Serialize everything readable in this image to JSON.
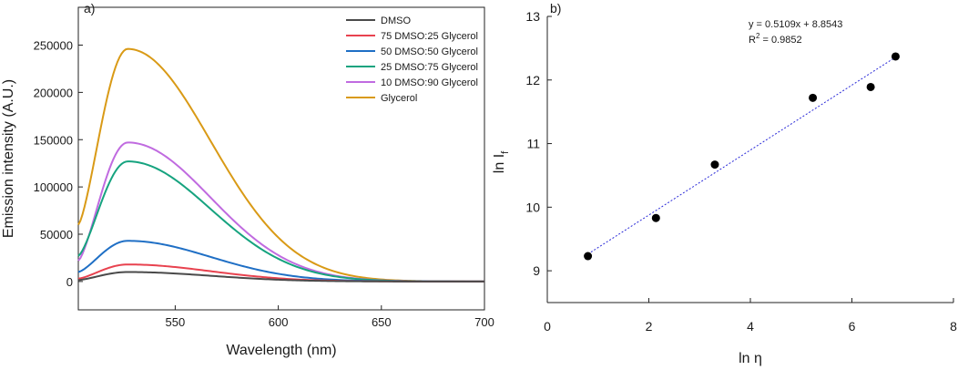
{
  "chart_data": [
    {
      "panel_label": "a)",
      "type": "line",
      "xlabel": "Wavelength (nm)",
      "ylabel": "Emission intensity (A.U.)",
      "xlim": [
        503,
        700
      ],
      "ylim": [
        -30000,
        290000
      ],
      "xticks": [
        550,
        600,
        650,
        700
      ],
      "yticks": [
        0,
        50000,
        100000,
        150000,
        200000,
        250000
      ],
      "legend_position": "top-right",
      "peak_wavelength": 527,
      "series": [
        {
          "name": "DMSO",
          "color": "#4a4a4a",
          "peak": 10000,
          "start": 1500
        },
        {
          "name": "75 DMSO:25 Glycerol",
          "color": "#e8424f",
          "peak": 18000,
          "start": 3000
        },
        {
          "name": "50 DMSO:50 Glycerol",
          "color": "#1f6fc5",
          "peak": 43000,
          "start": 10000
        },
        {
          "name": "25 DMSO:75 Glycerol",
          "color": "#16a37f",
          "peak": 127000,
          "start": 27000
        },
        {
          "name": "10 DMSO:90 Glycerol",
          "color": "#c06be0",
          "peak": 147000,
          "start": 22000
        },
        {
          "name": "Glycerol",
          "color": "#d99a16",
          "peak": 246000,
          "start": 60000
        }
      ]
    },
    {
      "panel_label": "b)",
      "type": "scatter",
      "xlabel": "ln η",
      "ylabel_main": "ln I",
      "ylabel_sub": "f",
      "xlim": [
        0,
        8
      ],
      "ylim": [
        8.5,
        13
      ],
      "xticks": [
        0,
        2,
        4,
        6,
        8
      ],
      "yticks": [
        9,
        10,
        11,
        12,
        13
      ],
      "points": [
        {
          "x": 0.8,
          "y": 9.23
        },
        {
          "x": 2.14,
          "y": 9.83
        },
        {
          "x": 3.3,
          "y": 10.67
        },
        {
          "x": 5.23,
          "y": 11.72
        },
        {
          "x": 6.37,
          "y": 11.89
        },
        {
          "x": 6.86,
          "y": 12.37
        }
      ],
      "fit": {
        "slope": 0.5109,
        "intercept": 8.8543,
        "x_range": [
          0.8,
          6.86
        ],
        "color": "#2a2ad8",
        "equation": "y = 0.5109x + 8.8543",
        "r2_label": "R",
        "r2_sup": "2",
        "r2_value": " = 0.9852"
      }
    }
  ]
}
